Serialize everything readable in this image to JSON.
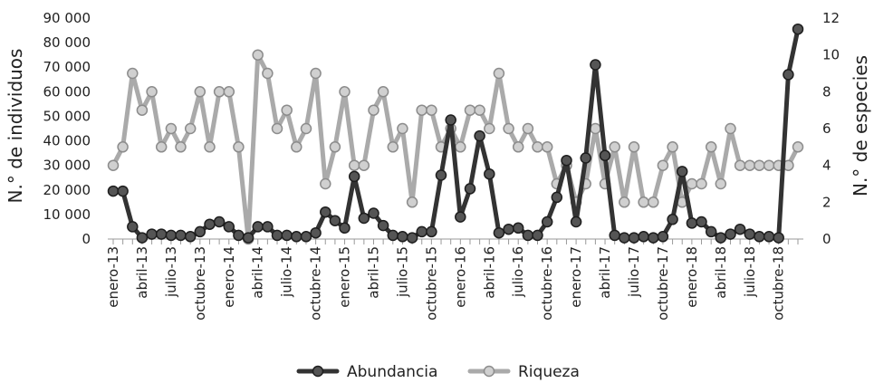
{
  "chart_data": {
    "type": "line",
    "ylabel_left": "N.° de individuos",
    "ylabel_right": "N.° de especies",
    "ylim_left": [
      0,
      90000
    ],
    "ylim_right": [
      0,
      12
    ],
    "y_ticks_left": [
      "0",
      "10 000",
      "20 000",
      "30 000",
      "40 000",
      "50 000",
      "60 000",
      "70 000",
      "80 000",
      "90 000"
    ],
    "y_ticks_right": [
      "0",
      "2",
      "4",
      "6",
      "8",
      "10",
      "12"
    ],
    "x_tick_labels": [
      "enero-13",
      "abril-13",
      "julio-13",
      "octubre-13",
      "enero-14",
      "abril-14",
      "julio-14",
      "octubre-14",
      "enero-15",
      "abril-15",
      "julio-15",
      "octubre-15",
      "enero-16",
      "abril-16",
      "julio-16",
      "octubre-16",
      "enero-17",
      "abril-17",
      "julio-17",
      "octubre-17",
      "enero-18",
      "abril-18",
      "julio-18",
      "octubre-18"
    ],
    "x": [
      "enero-13",
      "febrero-13",
      "marzo-13",
      "abril-13",
      "mayo-13",
      "junio-13",
      "julio-13",
      "agosto-13",
      "septiembre-13",
      "octubre-13",
      "noviembre-13",
      "diciembre-13",
      "enero-14",
      "febrero-14",
      "marzo-14",
      "abril-14",
      "mayo-14",
      "junio-14",
      "julio-14",
      "agosto-14",
      "septiembre-14",
      "octubre-14",
      "noviembre-14",
      "diciembre-14",
      "enero-15",
      "febrero-15",
      "marzo-15",
      "abril-15",
      "mayo-15",
      "junio-15",
      "julio-15",
      "agosto-15",
      "septiembre-15",
      "octubre-15",
      "noviembre-15",
      "diciembre-15",
      "enero-16",
      "febrero-16",
      "marzo-16",
      "abril-16",
      "mayo-16",
      "junio-16",
      "julio-16",
      "agosto-16",
      "septiembre-16",
      "octubre-16",
      "noviembre-16",
      "diciembre-16",
      "enero-17",
      "febrero-17",
      "marzo-17",
      "abril-17",
      "mayo-17",
      "junio-17",
      "julio-17",
      "agosto-17",
      "septiembre-17",
      "octubre-17",
      "noviembre-17",
      "diciembre-17",
      "enero-18",
      "febrero-18",
      "marzo-18",
      "abril-18",
      "mayo-18",
      "junio-18",
      "julio-18",
      "agosto-18",
      "septiembre-18",
      "octubre-18",
      "noviembre-18",
      "diciembre-18"
    ],
    "series": [
      {
        "name": "Abundancia",
        "axis": "left",
        "color": "#333333",
        "values": [
          19500,
          19500,
          5000,
          500,
          2000,
          2000,
          1500,
          1500,
          1000,
          3000,
          6000,
          7000,
          5000,
          1500,
          500,
          5000,
          5000,
          1500,
          1500,
          1000,
          1000,
          2500,
          11000,
          7500,
          4500,
          25500,
          8500,
          10500,
          5500,
          1500,
          1000,
          500,
          3000,
          3000,
          26000,
          48500,
          9000,
          20500,
          42000,
          26500,
          2500,
          4000,
          4500,
          1500,
          1500,
          7000,
          17000,
          32000,
          7000,
          33000,
          71000,
          34000,
          1500,
          500,
          500,
          1000,
          500,
          1000,
          8000,
          27500,
          6500,
          7000,
          3000,
          500,
          2000,
          4000,
          2000,
          1000,
          1000,
          500,
          67000,
          85500
        ]
      },
      {
        "name": "Riqueza",
        "axis": "right",
        "color": "#aaaaaa",
        "values": [
          4,
          5,
          9,
          7,
          8,
          5,
          6,
          5,
          6,
          8,
          5,
          8,
          8,
          5,
          0,
          10,
          9,
          6,
          7,
          5,
          6,
          9,
          3,
          5,
          8,
          4,
          4,
          7,
          8,
          5,
          6,
          2,
          7,
          7,
          5,
          6,
          5,
          7,
          7,
          6,
          9,
          6,
          5,
          6,
          5,
          5,
          3,
          4,
          2,
          3,
          6,
          3,
          5,
          2,
          5,
          2,
          2,
          4,
          5,
          2,
          3,
          3,
          5,
          3,
          6,
          4,
          4,
          4,
          4,
          4,
          4,
          5
        ]
      }
    ],
    "legend": {
      "position": "bottom",
      "entries": [
        "Abundancia",
        "Riqueza"
      ]
    }
  }
}
